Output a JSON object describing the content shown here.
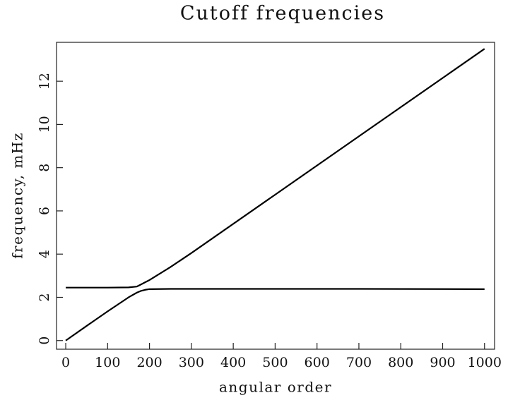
{
  "chart_data": {
    "type": "line",
    "title": "Cutoff frequencies",
    "xlabel": "angular order",
    "ylabel": "frequency, mHz",
    "x": [
      0,
      50,
      100,
      150,
      170,
      180,
      190,
      200,
      250,
      300,
      500,
      700,
      1000
    ],
    "series": [
      {
        "color": "#000000",
        "values": [
          0,
          0.68,
          1.35,
          2.0,
          2.22,
          2.3,
          2.35,
          2.38,
          2.39,
          2.39,
          2.39,
          2.39,
          2.38
        ]
      },
      {
        "color": "#000000",
        "values": [
          2.45,
          2.45,
          2.45,
          2.46,
          2.5,
          2.6,
          2.7,
          2.8,
          3.4,
          4.05,
          6.75,
          9.45,
          13.5
        ]
      }
    ],
    "xlim": [
      -22,
      1024
    ],
    "ylim": [
      -0.4,
      13.8
    ],
    "xticks": [
      0,
      100,
      200,
      300,
      400,
      500,
      600,
      700,
      800,
      900,
      1000
    ],
    "yticks": [
      0,
      2,
      4,
      6,
      8,
      10,
      12
    ]
  }
}
